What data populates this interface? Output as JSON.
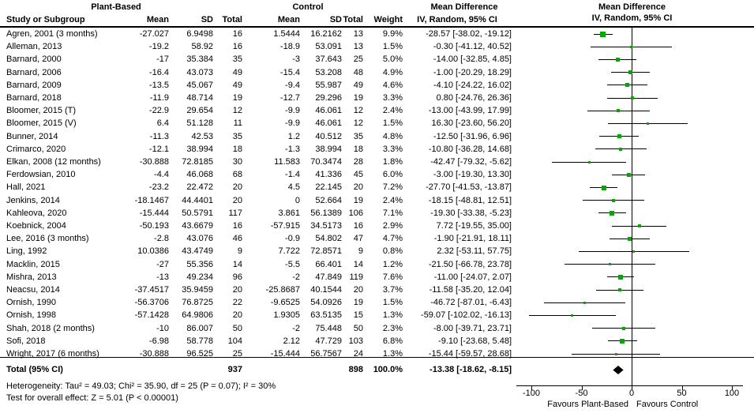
{
  "header": {
    "group_plant_based": "Plant-Based",
    "group_control": "Control",
    "md_title": "Mean Difference",
    "md_method": "IV, Random, 95% CI",
    "col_study": "Study or Subgroup",
    "col_mean": "Mean",
    "col_sd": "SD",
    "col_total": "Total",
    "col_weight": "Weight"
  },
  "footer": {
    "heterogeneity": "Heterogeneity: Tau² = 49.03; Chi² = 35.90, df = 25 (P = 0.07); I² = 30%",
    "overall_effect": "Test for overall effect: Z = 5.01 (P < 0.00001)"
  },
  "axis": {
    "min": -100,
    "max": 100,
    "ticks": [
      -100,
      -50,
      0,
      50,
      100
    ],
    "favours_left": "Favours Plant-Based",
    "favours_right": "Favours Control"
  },
  "colors": {
    "marker_green": "#00a800",
    "diamond_black": "#000000",
    "line_black": "#000000"
  },
  "chart_data": {
    "type": "forest",
    "title": "Mean Difference, IV, Random, 95% CI — Plant-Based vs Control",
    "xlabel": "Mean Difference",
    "xlim": [
      -100,
      100
    ],
    "x_ticks": [
      -100,
      -50,
      0,
      50,
      100
    ],
    "legend": [
      "Favours Plant-Based (left)",
      "Favours Control (right)"
    ],
    "studies": [
      {
        "name": "Agren, 2001 (3 months)",
        "pb_mean": "-27.027",
        "pb_sd": "6.9498",
        "pb_total": "16",
        "c_mean": "1.5444",
        "c_sd": "16.2162",
        "c_total": "13",
        "weight": "9.9%",
        "w": 9.9,
        "ci_text": "-28.57 [-38.02, -19.12]",
        "md": -28.57,
        "lo": -38.02,
        "hi": -19.12
      },
      {
        "name": "Alleman, 2013",
        "pb_mean": "-19.2",
        "pb_sd": "58.92",
        "pb_total": "16",
        "c_mean": "-18.9",
        "c_sd": "53.091",
        "c_total": "13",
        "weight": "1.5%",
        "w": 1.5,
        "ci_text": "-0.30 [-41.12, 40.52]",
        "md": -0.3,
        "lo": -41.12,
        "hi": 40.52
      },
      {
        "name": "Barnard, 2000",
        "pb_mean": "-17",
        "pb_sd": "35.384",
        "pb_total": "35",
        "c_mean": "-3",
        "c_sd": "37.643",
        "c_total": "25",
        "weight": "5.0%",
        "w": 5.0,
        "ci_text": "-14.00 [-32.85, 4.85]",
        "md": -14.0,
        "lo": -32.85,
        "hi": 4.85
      },
      {
        "name": "Barnard, 2006",
        "pb_mean": "-16.4",
        "pb_sd": "43.073",
        "pb_total": "49",
        "c_mean": "-15.4",
        "c_sd": "53.208",
        "c_total": "48",
        "weight": "4.9%",
        "w": 4.9,
        "ci_text": "-1.00 [-20.29, 18.29]",
        "md": -1.0,
        "lo": -20.29,
        "hi": 18.29
      },
      {
        "name": "Barnard, 2009",
        "pb_mean": "-13.5",
        "pb_sd": "45.067",
        "pb_total": "49",
        "c_mean": "-9.4",
        "c_sd": "55.987",
        "c_total": "49",
        "weight": "4.6%",
        "w": 4.6,
        "ci_text": "-4.10 [-24.22, 16.02]",
        "md": -4.1,
        "lo": -24.22,
        "hi": 16.02
      },
      {
        "name": "Barnard, 2018",
        "pb_mean": "-11.9",
        "pb_sd": "48.714",
        "pb_total": "19",
        "c_mean": "-12.7",
        "c_sd": "29.296",
        "c_total": "19",
        "weight": "3.3%",
        "w": 3.3,
        "ci_text": "0.80 [-24.76, 26.36]",
        "md": 0.8,
        "lo": -24.76,
        "hi": 26.36
      },
      {
        "name": "Bloomer, 2015 (T)",
        "pb_mean": "-22.9",
        "pb_sd": "29.654",
        "pb_total": "12",
        "c_mean": "-9.9",
        "c_sd": "46.061",
        "c_total": "12",
        "weight": "2.4%",
        "w": 2.4,
        "ci_text": "-13.00 [-43.99, 17.99]",
        "md": -13.0,
        "lo": -43.99,
        "hi": 17.99
      },
      {
        "name": "Bloomer, 2015 (V)",
        "pb_mean": "6.4",
        "pb_sd": "51.128",
        "pb_total": "11",
        "c_mean": "-9.9",
        "c_sd": "46.061",
        "c_total": "12",
        "weight": "1.5%",
        "w": 1.5,
        "ci_text": "16.30 [-23.60, 56.20]",
        "md": 16.3,
        "lo": -23.6,
        "hi": 56.2
      },
      {
        "name": "Bunner, 2014",
        "pb_mean": "-11.3",
        "pb_sd": "42.53",
        "pb_total": "35",
        "c_mean": "1.2",
        "c_sd": "40.512",
        "c_total": "35",
        "weight": "4.8%",
        "w": 4.8,
        "ci_text": "-12.50 [-31.96, 6.96]",
        "md": -12.5,
        "lo": -31.96,
        "hi": 6.96
      },
      {
        "name": "Crimarco, 2020",
        "pb_mean": "-12.1",
        "pb_sd": "38.994",
        "pb_total": "18",
        "c_mean": "-1.3",
        "c_sd": "38.994",
        "c_total": "18",
        "weight": "3.3%",
        "w": 3.3,
        "ci_text": "-10.80 [-36.28, 14.68]",
        "md": -10.8,
        "lo": -36.28,
        "hi": 14.68
      },
      {
        "name": "Elkan, 2008 (12 months)",
        "pb_mean": "-30.888",
        "pb_sd": "72.8185",
        "pb_total": "30",
        "c_mean": "11.583",
        "c_sd": "70.3474",
        "c_total": "28",
        "weight": "1.8%",
        "w": 1.8,
        "ci_text": "-42.47 [-79.32, -5.62]",
        "md": -42.47,
        "lo": -79.32,
        "hi": -5.62
      },
      {
        "name": "Ferdowsian, 2010",
        "pb_mean": "-4.4",
        "pb_sd": "46.068",
        "pb_total": "68",
        "c_mean": "-1.4",
        "c_sd": "41.336",
        "c_total": "45",
        "weight": "6.0%",
        "w": 6.0,
        "ci_text": "-3.00 [-19.30, 13.30]",
        "md": -3.0,
        "lo": -19.3,
        "hi": 13.3
      },
      {
        "name": "Hall, 2021",
        "pb_mean": "-23.2",
        "pb_sd": "22.472",
        "pb_total": "20",
        "c_mean": "4.5",
        "c_sd": "22.145",
        "c_total": "20",
        "weight": "7.2%",
        "w": 7.2,
        "ci_text": "-27.70 [-41.53, -13.87]",
        "md": -27.7,
        "lo": -41.53,
        "hi": -13.87
      },
      {
        "name": "Jenkins, 2014",
        "pb_mean": "-18.1467",
        "pb_sd": "44.4401",
        "pb_total": "20",
        "c_mean": "0",
        "c_sd": "52.664",
        "c_total": "19",
        "weight": "2.4%",
        "w": 2.4,
        "ci_text": "-18.15 [-48.81, 12.51]",
        "md": -18.15,
        "lo": -48.81,
        "hi": 12.51
      },
      {
        "name": "Kahleova, 2020",
        "pb_mean": "-15.444",
        "pb_sd": "50.5791",
        "pb_total": "117",
        "c_mean": "3.861",
        "c_sd": "56.1389",
        "c_total": "106",
        "weight": "7.1%",
        "w": 7.1,
        "ci_text": "-19.30 [-33.38, -5.23]",
        "md": -19.3,
        "lo": -33.38,
        "hi": -5.23
      },
      {
        "name": "Koebnick, 2004",
        "pb_mean": "-50.193",
        "pb_sd": "43.6679",
        "pb_total": "16",
        "c_mean": "-57.915",
        "c_sd": "34.5173",
        "c_total": "16",
        "weight": "2.9%",
        "w": 2.9,
        "ci_text": "7.72 [-19.55, 35.00]",
        "md": 7.72,
        "lo": -19.55,
        "hi": 35.0
      },
      {
        "name": "Lee, 2016 (3 months)",
        "pb_mean": "-2.8",
        "pb_sd": "43.076",
        "pb_total": "46",
        "c_mean": "-0.9",
        "c_sd": "54.802",
        "c_total": "47",
        "weight": "4.7%",
        "w": 4.7,
        "ci_text": "-1.90 [-21.91, 18.11]",
        "md": -1.9,
        "lo": -21.91,
        "hi": 18.11
      },
      {
        "name": "Ling, 1992",
        "pb_mean": "10.0386",
        "pb_sd": "43.4749",
        "pb_total": "9",
        "c_mean": "7.722",
        "c_sd": "72.8571",
        "c_total": "9",
        "weight": "0.8%",
        "w": 0.8,
        "ci_text": "2.32 [-53.11, 57.75]",
        "md": 2.32,
        "lo": -53.11,
        "hi": 57.75
      },
      {
        "name": "Macklin, 2015",
        "pb_mean": "-27",
        "pb_sd": "55.356",
        "pb_total": "14",
        "c_mean": "-5.5",
        "c_sd": "66.401",
        "c_total": "14",
        "weight": "1.2%",
        "w": 1.2,
        "ci_text": "-21.50 [-66.78, 23.78]",
        "md": -21.5,
        "lo": -66.78,
        "hi": 23.78
      },
      {
        "name": "Mishra, 2013",
        "pb_mean": "-13",
        "pb_sd": "49.234",
        "pb_total": "96",
        "c_mean": "-2",
        "c_sd": "47.849",
        "c_total": "119",
        "weight": "7.6%",
        "w": 7.6,
        "ci_text": "-11.00 [-24.07, 2.07]",
        "md": -11.0,
        "lo": -24.07,
        "hi": 2.07
      },
      {
        "name": "Neacsu, 2014",
        "pb_mean": "-37.4517",
        "pb_sd": "35.9459",
        "pb_total": "20",
        "c_mean": "-25.8687",
        "c_sd": "40.1544",
        "c_total": "20",
        "weight": "3.7%",
        "w": 3.7,
        "ci_text": "-11.58 [-35.20, 12.04]",
        "md": -11.58,
        "lo": -35.2,
        "hi": 12.04
      },
      {
        "name": "Ornish, 1990",
        "pb_mean": "-56.3706",
        "pb_sd": "76.8725",
        "pb_total": "22",
        "c_mean": "-9.6525",
        "c_sd": "54.0926",
        "c_total": "19",
        "weight": "1.5%",
        "w": 1.5,
        "ci_text": "-46.72 [-87.01, -6.43]",
        "md": -46.72,
        "lo": -87.01,
        "hi": -6.43
      },
      {
        "name": "Ornish, 1998",
        "pb_mean": "-57.1428",
        "pb_sd": "64.9806",
        "pb_total": "20",
        "c_mean": "1.9305",
        "c_sd": "63.5135",
        "c_total": "15",
        "weight": "1.3%",
        "w": 1.3,
        "ci_text": "-59.07 [-102.02, -16.13]",
        "md": -59.07,
        "lo": -102.02,
        "hi": -16.13
      },
      {
        "name": "Shah, 2018 (2 months)",
        "pb_mean": "-10",
        "pb_sd": "86.007",
        "pb_total": "50",
        "c_mean": "-2",
        "c_sd": "75.448",
        "c_total": "50",
        "weight": "2.3%",
        "w": 2.3,
        "ci_text": "-8.00 [-39.71, 23.71]",
        "md": -8.0,
        "lo": -39.71,
        "hi": 23.71
      },
      {
        "name": "Sofi, 2018",
        "pb_mean": "-6.98",
        "pb_sd": "58.778",
        "pb_total": "104",
        "c_mean": "2.12",
        "c_sd": "47.729",
        "c_total": "103",
        "weight": "6.8%",
        "w": 6.8,
        "ci_text": "-9.10 [-23.68, 5.48]",
        "md": -9.1,
        "lo": -23.68,
        "hi": 5.48
      },
      {
        "name": "Wright, 2017 (6 months)",
        "pb_mean": "-30.888",
        "pb_sd": "96.525",
        "pb_total": "25",
        "c_mean": "-15.444",
        "c_sd": "56.7567",
        "c_total": "24",
        "weight": "1.3%",
        "w": 1.3,
        "ci_text": "-15.44 [-59.57, 28.68]",
        "md": -15.44,
        "lo": -59.57,
        "hi": 28.68
      }
    ],
    "total": {
      "label": "Total (95% CI)",
      "pb_total": "937",
      "c_total": "898",
      "weight": "100.0%",
      "ci_text": "-13.38 [-18.62, -8.15]",
      "md": -13.38,
      "lo": -18.62,
      "hi": -8.15
    }
  }
}
